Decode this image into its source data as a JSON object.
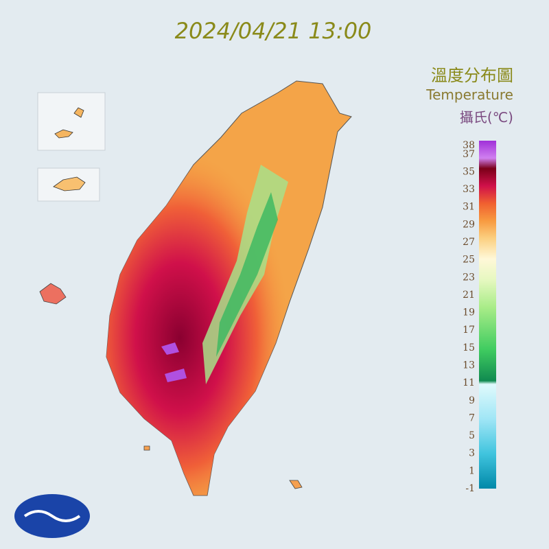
{
  "title": "2024/04/21 13:00",
  "legend": {
    "title": "溫度分布圖",
    "subtitle": "Temperature",
    "unit": "攝氏(℃)",
    "ticks": [
      38,
      37,
      35,
      33,
      31,
      29,
      27,
      25,
      23,
      21,
      19,
      17,
      15,
      13,
      11,
      9,
      7,
      5,
      3,
      1,
      -1
    ]
  }
}
